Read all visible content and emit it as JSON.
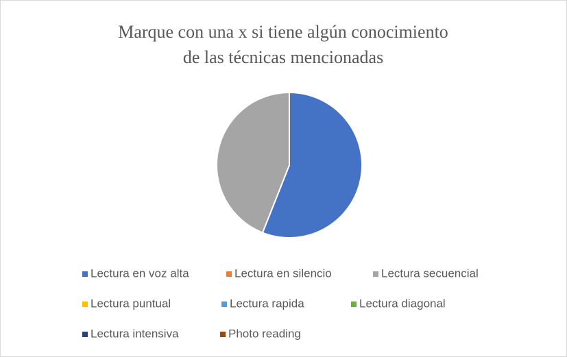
{
  "chart_data": {
    "type": "pie",
    "title": "Marque con una x si tiene algún conocimiento de las técnicas mencionadas",
    "categories": [
      "Lectura en voz alta",
      "Lectura en silencio",
      "Lectura secuencial",
      "Lectura puntual",
      "Lectura rapida",
      "Lectura diagonal",
      "Lectura intensiva",
      "Photo reading"
    ],
    "values": [
      56,
      0,
      44,
      0,
      0,
      0,
      0,
      0
    ],
    "colors": [
      "#4472c4",
      "#ed7d31",
      "#a5a5a5",
      "#ffc000",
      "#5b9bd5",
      "#70ad47",
      "#264478",
      "#9e480e"
    ],
    "legend": "bottom"
  }
}
